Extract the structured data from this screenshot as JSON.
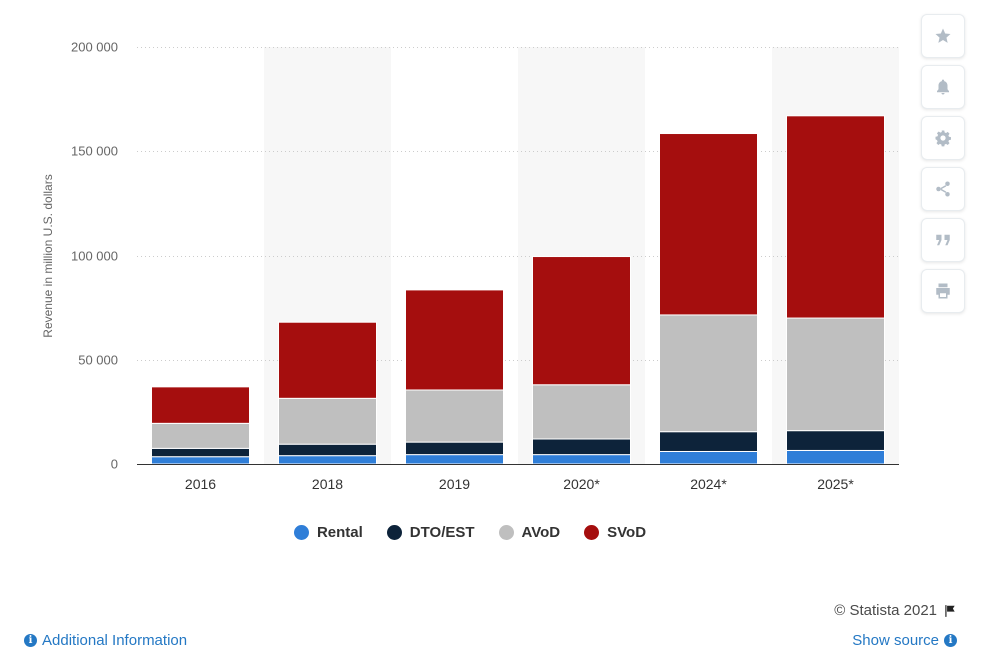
{
  "chart_data": {
    "type": "bar",
    "stacked": true,
    "title": "",
    "xlabel": "",
    "ylabel": "Revenue in million U.S. dollars",
    "ylim": [
      0,
      200000
    ],
    "yticks": [
      0,
      50000,
      100000,
      150000,
      200000
    ],
    "ytick_labels": [
      "0",
      "50 000",
      "100 000",
      "150 000",
      "200 000"
    ],
    "grid": true,
    "legend_position": "bottom",
    "categories": [
      "2016",
      "2018",
      "2019",
      "2020*",
      "2024*",
      "2025*"
    ],
    "series": [
      {
        "name": "Rental",
        "color": "#2f7ed8",
        "values": [
          3500,
          4000,
          4500,
          4500,
          6000,
          6500
        ]
      },
      {
        "name": "DTO/EST",
        "color": "#0d233a",
        "values": [
          4000,
          5500,
          6000,
          7500,
          9500,
          9500
        ]
      },
      {
        "name": "AVoD",
        "color": "#bfbfbf",
        "values": [
          12000,
          22000,
          25000,
          26000,
          56000,
          54000
        ]
      },
      {
        "name": "SVoD",
        "color": "#a50e0e",
        "values": [
          17500,
          36500,
          48000,
          61500,
          87000,
          97000
        ]
      }
    ]
  },
  "toolbar": {
    "buttons": [
      {
        "name": "star-icon"
      },
      {
        "name": "bell-icon"
      },
      {
        "name": "gear-icon"
      },
      {
        "name": "share-icon"
      },
      {
        "name": "quote-icon"
      },
      {
        "name": "print-icon"
      }
    ]
  },
  "footer": {
    "copyright": "© Statista 2021",
    "additional_info": "Additional Information",
    "show_source": "Show source"
  }
}
